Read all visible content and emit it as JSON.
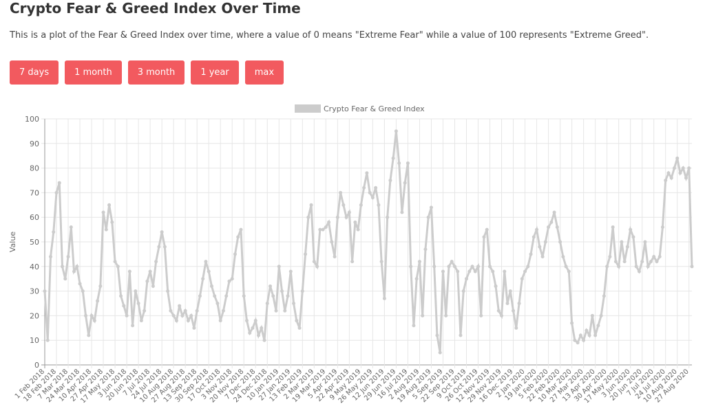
{
  "header": {
    "title": "Crypto Fear & Greed Index Over Time",
    "description": "This is a plot of the Fear & Greed Index over time, where a value of 0 means \"Extreme Fear\" while a value of 100 represents \"Extreme Greed\"."
  },
  "buttons": [
    "7 days",
    "1 month",
    "3 month",
    "1 year",
    "max"
  ],
  "chart_data": {
    "type": "line",
    "ylabel": "Value",
    "categories": [
      "1 Feb 2018",
      null,
      null,
      null,
      "18 Feb 2018",
      null,
      null,
      null,
      "7 Mar 2018",
      null,
      null,
      null,
      "24 Mar 2018",
      null,
      null,
      null,
      "10 Apr 2018",
      null,
      null,
      null,
      "27 Apr 2018",
      null,
      null,
      null,
      "17 May 2018",
      null,
      null,
      null,
      "3 Jun 2018",
      null,
      null,
      null,
      "20 Jun 2018",
      null,
      null,
      null,
      "7 Jul 2018",
      null,
      null,
      null,
      "24 Jul 2018",
      null,
      null,
      null,
      "10 Aug 2018",
      null,
      null,
      null,
      "27 Aug 2018",
      null,
      null,
      null,
      "13 Sep 2018",
      null,
      null,
      null,
      "30 Sep 2018",
      null,
      null,
      null,
      "17 Oct 2018",
      null,
      null,
      null,
      "3 Nov 2018",
      null,
      null,
      null,
      "20 Nov 2018",
      null,
      null,
      null,
      "7 Dec 2018",
      null,
      null,
      null,
      "24 Dec 2018",
      null,
      null,
      null,
      "10 Jan 2019",
      null,
      null,
      null,
      "27 Jan 2019",
      null,
      null,
      null,
      "13 Feb 2019",
      null,
      null,
      null,
      "2 Mar 2019",
      null,
      null,
      null,
      "19 Mar 2019",
      null,
      null,
      null,
      "5 Apr 2019",
      null,
      null,
      null,
      "22 Apr 2019",
      null,
      null,
      null,
      "9 May 2019",
      null,
      null,
      null,
      "26 May 2019",
      null,
      null,
      null,
      "12 Jun 2019",
      null,
      null,
      null,
      "29 Jun 2019",
      null,
      null,
      null,
      "16 Jul 2019",
      null,
      null,
      null,
      "2 Aug 2019",
      null,
      null,
      null,
      "19 Aug 2019",
      null,
      null,
      null,
      "5 Sep 2019",
      null,
      null,
      null,
      "22 Sep 2019",
      null,
      null,
      null,
      "9 Oct 2019",
      null,
      null,
      null,
      "26 Oct 2019",
      null,
      null,
      null,
      "12 Nov 2019",
      null,
      null,
      null,
      "29 Nov 2019",
      null,
      null,
      null,
      "16 Dec 2019",
      null,
      null,
      null,
      "2 Jan 2020",
      null,
      null,
      null,
      "19 Jan 2020",
      null,
      null,
      null,
      "5 Feb 2020",
      null,
      null,
      null,
      "22 Feb 2020",
      null,
      null,
      null,
      "10 Mar 2020",
      null,
      null,
      null,
      "27 Mar 2020",
      null,
      null,
      null,
      "13 Apr 2020",
      null,
      null,
      null,
      "30 Apr 2020",
      null,
      null,
      null,
      "17 May 2020",
      null,
      null,
      null,
      "3 Jun 2020",
      null,
      null,
      null,
      "20 Jun 2020",
      null,
      null,
      null,
      "7 Jul 2020",
      null,
      null,
      null,
      "24 Jul 2020",
      null,
      null,
      null,
      "10 Aug 2020",
      null,
      null,
      null,
      "27 Aug 2020",
      null
    ],
    "series": [
      {
        "name": "Crypto Fear & Greed Index",
        "color": "#cccccc",
        "values": [
          30,
          10,
          44,
          54,
          70,
          74,
          40,
          35,
          44,
          56,
          38,
          40,
          33,
          30,
          20,
          12,
          20,
          18,
          26,
          32,
          62,
          55,
          65,
          58,
          42,
          40,
          28,
          24,
          20,
          38,
          16,
          30,
          25,
          18,
          22,
          34,
          38,
          32,
          42,
          48,
          54,
          48,
          30,
          22,
          20,
          18,
          24,
          20,
          22,
          18,
          20,
          15,
          22,
          28,
          35,
          42,
          38,
          32,
          28,
          25,
          18,
          22,
          28,
          34,
          35,
          45,
          52,
          55,
          28,
          18,
          13,
          15,
          18,
          12,
          15,
          10,
          25,
          32,
          28,
          22,
          40,
          30,
          22,
          28,
          38,
          25,
          18,
          15,
          30,
          45,
          60,
          65,
          42,
          40,
          55,
          55,
          56,
          58,
          50,
          44,
          60,
          70,
          65,
          60,
          62,
          42,
          58,
          55,
          65,
          72,
          78,
          70,
          68,
          72,
          65,
          42,
          27,
          60,
          75,
          84,
          95,
          82,
          62,
          74,
          82,
          40,
          16,
          35,
          42,
          20,
          47,
          60,
          64,
          40,
          12,
          5,
          38,
          20,
          40,
          42,
          40,
          38,
          12,
          30,
          35,
          38,
          40,
          38,
          40,
          20,
          52,
          55,
          40,
          38,
          32,
          22,
          20,
          38,
          25,
          30,
          22,
          15,
          25,
          35,
          38,
          40,
          45,
          52,
          55,
          48,
          44,
          50,
          56,
          58,
          62,
          56,
          50,
          44,
          40,
          38,
          17,
          10,
          9,
          12,
          10,
          14,
          12,
          20,
          12,
          16,
          20,
          28,
          40,
          44,
          56,
          42,
          40,
          50,
          42,
          48,
          55,
          52,
          40,
          38,
          42,
          50,
          40,
          42,
          44,
          42,
          44,
          56,
          75,
          78,
          76,
          80,
          84,
          78,
          80,
          76,
          80,
          40
        ]
      }
    ],
    "ylim": [
      0,
      100
    ],
    "yticks": [
      0,
      10,
      20,
      30,
      40,
      50,
      60,
      70,
      80,
      90,
      100
    ],
    "grid": true,
    "legend": "top"
  }
}
